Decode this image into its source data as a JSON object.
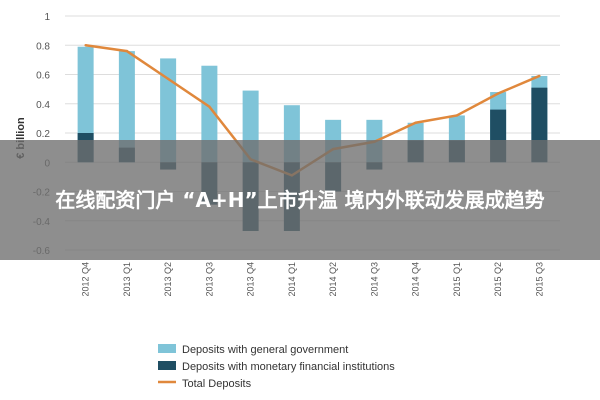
{
  "caption": "在线配资门户 “A+H”上市升温 境内外联动发展成趋势",
  "colors": {
    "general_government": "#7fc4d8",
    "monetary_institutions": "#1f4e63",
    "total_deposits": "#e0883c",
    "grid": "#dddddd",
    "caption_band": "#6e6e6e"
  },
  "chart_data": {
    "type": "bar",
    "ylabel": "€ billion",
    "ylim": [
      -0.6,
      1
    ],
    "yticks": [
      "1",
      "0.8",
      "0.6",
      "0.4",
      "0.2",
      "0",
      "-0.2",
      "-0.4",
      "-0.6"
    ],
    "ytick_values": [
      1,
      0.8,
      0.6,
      0.4,
      0.2,
      0,
      -0.2,
      -0.4,
      -0.6
    ],
    "categories": [
      "2012 Q4",
      "2013 Q1",
      "2013 Q2",
      "2013 Q3",
      "2013 Q4",
      "2014 Q1",
      "2014 Q2",
      "2014 Q3",
      "2014 Q4",
      "2015 Q1",
      "2015 Q2",
      "2015 Q3"
    ],
    "series": [
      {
        "name": "Deposits with general government",
        "kind": "bar",
        "values": [
          0.79,
          0.76,
          0.71,
          0.66,
          0.49,
          0.39,
          0.29,
          0.29,
          0.27,
          0.32,
          0.48,
          0.59
        ]
      },
      {
        "name": "Deposits with monetary financial institutions",
        "kind": "bar",
        "values": [
          0.2,
          0.1,
          -0.05,
          -0.29,
          -0.47,
          -0.47,
          -0.2,
          -0.05,
          0.15,
          0.15,
          0.36,
          0.51
        ]
      },
      {
        "name": "Total Deposits",
        "kind": "line",
        "values": [
          0.8,
          0.76,
          0.57,
          0.38,
          0.02,
          -0.09,
          0.09,
          0.14,
          0.27,
          0.32,
          0.47,
          0.59
        ]
      }
    ],
    "legend_position": "bottom",
    "grid": true
  }
}
